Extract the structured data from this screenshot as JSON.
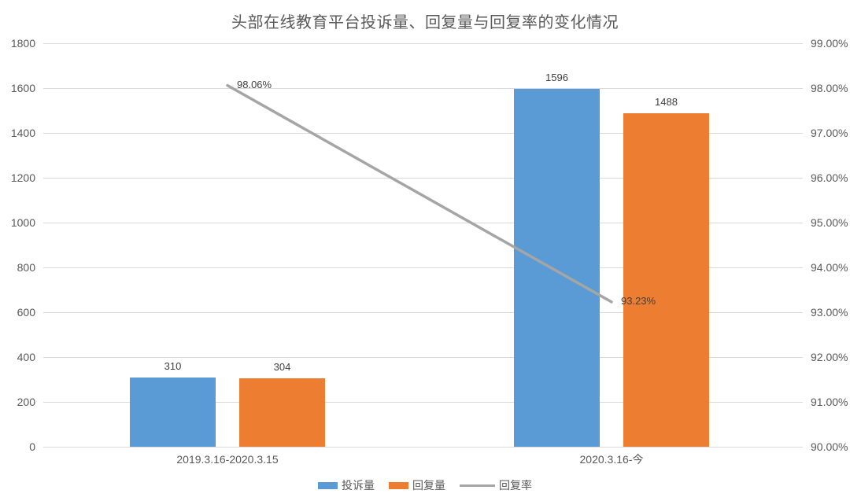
{
  "title": "头部在线教育平台投诉量、回复量与回复率的变化情况",
  "chart_data": {
    "type": "bar",
    "title": "头部在线教育平台投诉量、回复量与回复率的变化情况",
    "categories": [
      "2019.3.16-2020.3.15",
      "2020.3.16-今"
    ],
    "series": [
      {
        "name": "投诉量",
        "kind": "bar",
        "axis": "left",
        "color": "#5B9BD5",
        "values": [
          310,
          1596
        ],
        "labels": [
          "310",
          "1596"
        ]
      },
      {
        "name": "回复量",
        "kind": "bar",
        "axis": "left",
        "color": "#ED7D31",
        "values": [
          304,
          1488
        ],
        "labels": [
          "304",
          "1488"
        ]
      },
      {
        "name": "回复率",
        "kind": "line",
        "axis": "right",
        "color": "#A5A5A5",
        "values": [
          98.06,
          93.23
        ],
        "labels": [
          "98.06%",
          "93.23%"
        ]
      }
    ],
    "left_axis": {
      "min": 0,
      "max": 1800,
      "step": 200,
      "tick_labels": [
        "0",
        "200",
        "400",
        "600",
        "800",
        "1000",
        "1200",
        "1400",
        "1600",
        "1800"
      ]
    },
    "right_axis": {
      "min": 90,
      "max": 99,
      "step": 1,
      "tick_labels": [
        "90.00%",
        "91.00%",
        "92.00%",
        "93.00%",
        "94.00%",
        "95.00%",
        "96.00%",
        "97.00%",
        "98.00%",
        "99.00%"
      ]
    },
    "grid": "horizontal",
    "legend_position": "bottom",
    "colors": {
      "complaints_bar": "#5B9BD5",
      "replies_bar": "#ED7D31",
      "rate_line": "#A5A5A5",
      "grid": "#D9D9D9",
      "axis_text": "#595959",
      "title_text": "#595959",
      "data_label": "#404040",
      "background": "#FFFFFF"
    }
  }
}
